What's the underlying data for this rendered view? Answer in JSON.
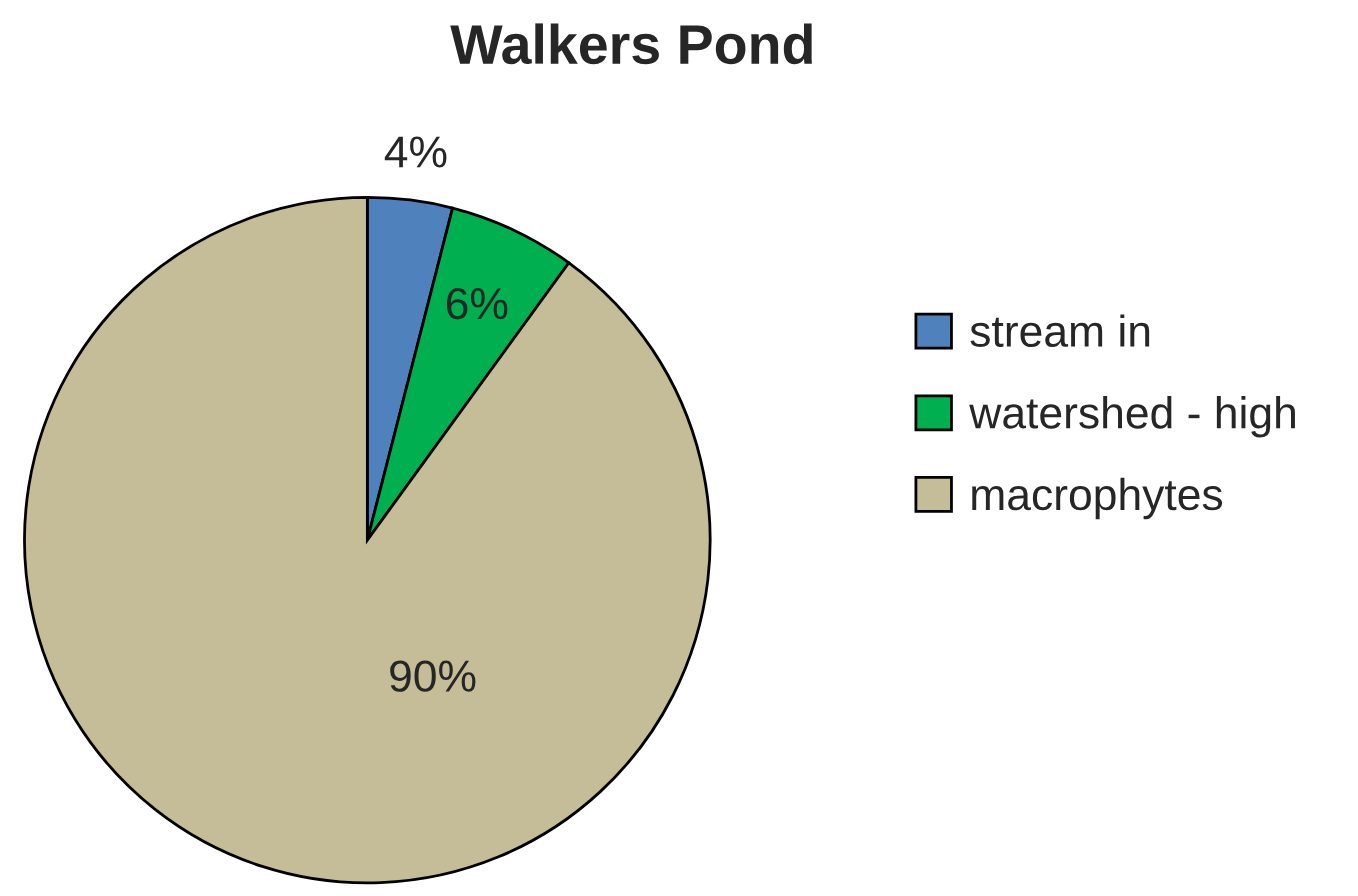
{
  "chart_data": {
    "type": "pie",
    "title": "Walkers Pond",
    "categories": [
      "stream in",
      "watershed - high",
      "macrophytes"
    ],
    "values": [
      4,
      6,
      90
    ],
    "colors": [
      "#4f81bd",
      "#00b050",
      "#c4bd97"
    ],
    "value_labels": [
      "4%",
      "6%",
      "90%"
    ],
    "legend": "right"
  }
}
